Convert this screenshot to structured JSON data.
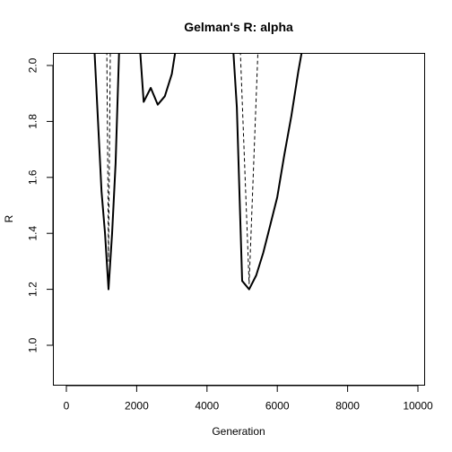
{
  "chart_data": {
    "type": "line",
    "title": "Gelman's R: alpha",
    "xlabel": "Generation",
    "ylabel": "R",
    "xlim": [
      0,
      10000
    ],
    "ylim": [
      0.85,
      2.05
    ],
    "x_ticks": [
      0,
      2000,
      4000,
      6000,
      8000,
      10000
    ],
    "x_tick_labels": [
      "0",
      "2000",
      "4000",
      "6000",
      "8000",
      "10000"
    ],
    "y_ticks": [
      1.0,
      1.2,
      1.4,
      1.6,
      1.8,
      2.0
    ],
    "y_tick_labels": [
      "1.0",
      "1.2",
      "1.4",
      "1.6",
      "1.8",
      "2.0"
    ],
    "grid": false,
    "series": [
      {
        "style": "solid",
        "segments": [
          [
            [
              800,
              2.05
            ],
            [
              900,
              1.8
            ],
            [
              1000,
              1.55
            ],
            [
              1100,
              1.4
            ],
            [
              1200,
              1.2
            ],
            [
              1300,
              1.4
            ],
            [
              1400,
              1.65
            ],
            [
              1500,
              2.05
            ]
          ],
          [
            [
              2100,
              2.05
            ],
            [
              2200,
              1.87
            ],
            [
              2400,
              1.92
            ],
            [
              2600,
              1.86
            ],
            [
              2800,
              1.89
            ],
            [
              3000,
              1.97
            ],
            [
              3100,
              2.05
            ]
          ],
          [
            [
              4750,
              2.05
            ],
            [
              4850,
              1.85
            ],
            [
              5000,
              1.23
            ],
            [
              5200,
              1.2
            ],
            [
              5400,
              1.25
            ],
            [
              5600,
              1.33
            ],
            [
              5800,
              1.43
            ],
            [
              6000,
              1.53
            ],
            [
              6200,
              1.68
            ],
            [
              6400,
              1.82
            ],
            [
              6600,
              1.98
            ],
            [
              6700,
              2.05
            ]
          ]
        ]
      },
      {
        "style": "dashed",
        "segments": [
          [
            [
              1150,
              2.05
            ],
            [
              1200,
              1.3
            ],
            [
              1250,
              2.05
            ]
          ],
          [
            [
              4950,
              2.05
            ],
            [
              5200,
              1.22
            ],
            [
              5450,
              2.05
            ]
          ]
        ]
      }
    ]
  }
}
